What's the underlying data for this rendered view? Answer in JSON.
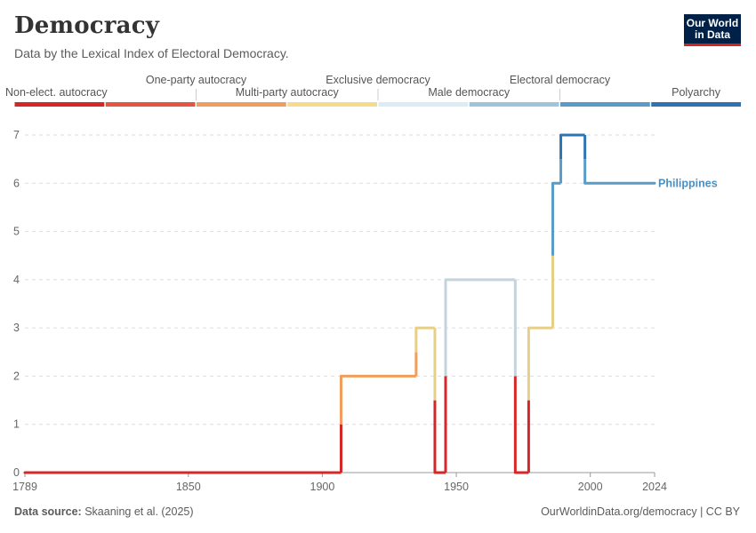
{
  "header": {
    "title": "Democracy",
    "subtitle": "Data by the Lexical Index of Electoral Democracy."
  },
  "logo": {
    "line1": "Our World",
    "line2": "in Data"
  },
  "footer": {
    "source_label": "Data source:",
    "source_text": "Skaaning et al. (2025)",
    "url_text": "OurWorldinData.org/democracy | CC BY"
  },
  "chart_data": {
    "type": "line",
    "title": "Democracy",
    "subtitle": "Data by the Lexical Index of Electoral Democracy.",
    "xlabel": "",
    "ylabel": "",
    "xlim": [
      1789,
      2024
    ],
    "ylim": [
      0,
      7
    ],
    "x_ticks": [
      1789,
      1850,
      1900,
      1950,
      2000,
      2024
    ],
    "y_ticks": [
      0,
      1,
      2,
      3,
      4,
      5,
      6,
      7
    ],
    "grid": "horizontal dashed",
    "legend": {
      "position": "top",
      "categories": [
        {
          "label": "Non-elect. autocracy",
          "color": "#d62728"
        },
        {
          "label": "One-party autocracy",
          "color": "#e4563f"
        },
        {
          "label": "Multi-party autocracy",
          "color": "#f19d5c"
        },
        {
          "label": "Exclusive democracy",
          "color": "#f5dc8c"
        },
        {
          "label": "Male democracy",
          "color": "#dcecf6"
        },
        {
          "label": "Electoral democracy",
          "color": "#9ec5dc"
        },
        {
          "label": "Polyarchy",
          "color": "#5a9bc8"
        },
        {
          "label": "",
          "color": "#2f74b2"
        }
      ]
    },
    "series": [
      {
        "name": "Philippines",
        "color": "#4a8ec2",
        "points": [
          [
            1789,
            0
          ],
          [
            1906,
            0
          ],
          [
            1907,
            2
          ],
          [
            1934,
            2
          ],
          [
            1935,
            3
          ],
          [
            1941,
            3
          ],
          [
            1942,
            0
          ],
          [
            1945,
            0
          ],
          [
            1946,
            4
          ],
          [
            1971,
            4
          ],
          [
            1972,
            0
          ],
          [
            1976,
            0
          ],
          [
            1977,
            3
          ],
          [
            1985,
            3
          ],
          [
            1986,
            6
          ],
          [
            1988,
            6
          ],
          [
            1989,
            7
          ],
          [
            1997,
            7
          ],
          [
            1998,
            6
          ],
          [
            2024,
            6
          ]
        ]
      }
    ],
    "level_colors": [
      "#d62728",
      "#d62728",
      "#f19d5c",
      "#e8cf88",
      "#c4d4dc",
      "#9ec5dc",
      "#5a9bc8",
      "#2f74b2"
    ]
  }
}
